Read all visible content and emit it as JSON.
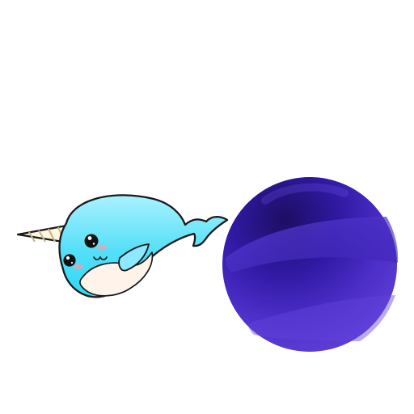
{
  "scene": {
    "background": "#ffffff",
    "characters": [
      {
        "name": "narwhal",
        "icon": "narwhal-icon"
      },
      {
        "name": "planet",
        "icon": "planet-icon"
      }
    ]
  },
  "colors": {
    "narwhal_body_light": "#a9f2ff",
    "narwhal_body_dark": "#30d8f4",
    "narwhal_belly": "#fff3ea",
    "narwhal_outline": "#1a1a1a",
    "horn_base": "#fff6df",
    "horn_stripe": "#c8b48a",
    "cheek_blush": "#ff9aa8",
    "eye": "#111111",
    "planet_light": "#5f3fd6",
    "planet_mid": "#3e22bb",
    "planet_dark": "#231276",
    "planet_band": "#4a2dc5"
  }
}
